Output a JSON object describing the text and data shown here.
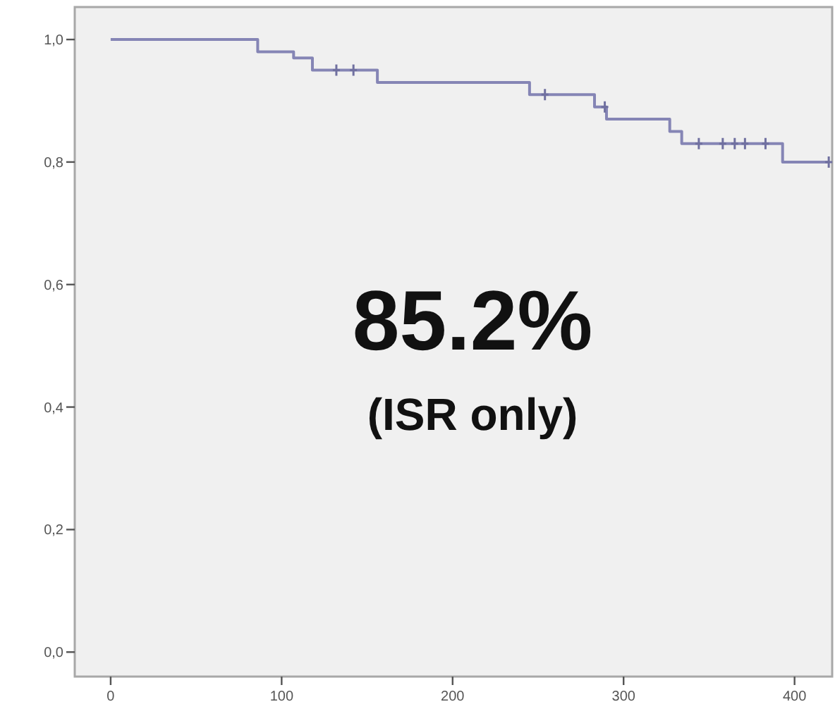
{
  "chart_data": {
    "type": "step",
    "xlim": [
      -21,
      422
    ],
    "ylim": [
      -0.04,
      1.053
    ],
    "xticks": [
      0,
      100,
      200,
      300,
      400
    ],
    "yticks": [
      {
        "value": 0,
        "label": "0,0"
      },
      {
        "value": 0.2,
        "label": "0,2"
      },
      {
        "value": 0.4,
        "label": "0,4"
      },
      {
        "value": 0.6,
        "label": "0,6"
      },
      {
        "value": 0.8,
        "label": "0,8"
      },
      {
        "value": 1,
        "label": "1,0"
      }
    ],
    "series": [
      {
        "color": "#8585b5",
        "x": [
          0,
          86,
          107,
          118,
          156,
          245,
          283,
          290,
          327,
          334,
          393,
          420
        ],
        "values": [
          1.0,
          0.98,
          0.97,
          0.95,
          0.93,
          0.91,
          0.89,
          0.87,
          0.85,
          0.83,
          0.8,
          0.8
        ]
      },
      {
        "type": "scatter",
        "marker": "cross",
        "color": "#7070a0",
        "x": [
          132,
          142,
          254,
          289,
          344,
          358,
          365,
          371,
          383,
          420
        ],
        "values": [
          0.95,
          0.95,
          0.91,
          0.89,
          0.83,
          0.83,
          0.83,
          0.83,
          0.83,
          0.8
        ]
      }
    ],
    "annotations": [
      "85.2%",
      "(ISR only)"
    ],
    "grid": false
  }
}
